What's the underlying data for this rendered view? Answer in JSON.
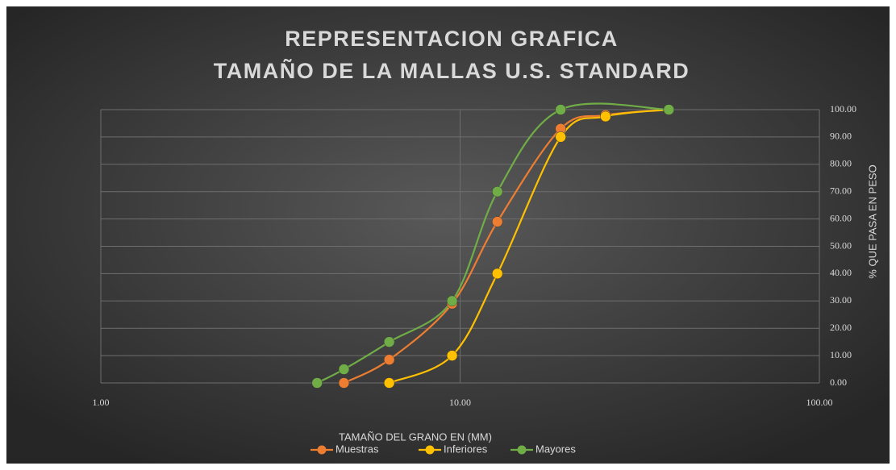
{
  "chart_data": {
    "type": "line",
    "title": "REPRESENTACION GRAFICA",
    "subtitle": "TAMAÑO DE LA MALLAS U.S. STANDARD",
    "xlabel": "TAMAÑO DEL GRANO EN (MM)",
    "ylabel": "% QUE PASA EN PESO",
    "xscale": "log",
    "xlim": [
      1,
      100
    ],
    "xticks": [
      {
        "value": 1,
        "label": "1.00"
      },
      {
        "value": 10,
        "label": "10.00"
      },
      {
        "value": 100,
        "label": "100.00"
      }
    ],
    "ylim": [
      0,
      100
    ],
    "yticks": [
      {
        "value": 0,
        "label": "0.00"
      },
      {
        "value": 10,
        "label": "10.00"
      },
      {
        "value": 20,
        "label": "20.00"
      },
      {
        "value": 30,
        "label": "30.00"
      },
      {
        "value": 40,
        "label": "40.00"
      },
      {
        "value": 50,
        "label": "50.00"
      },
      {
        "value": 60,
        "label": "60.00"
      },
      {
        "value": 70,
        "label": "70.00"
      },
      {
        "value": 80,
        "label": "80.00"
      },
      {
        "value": 90,
        "label": "90.00"
      },
      {
        "value": 100,
        "label": "100.00"
      }
    ],
    "grid": true,
    "legend": "bottom",
    "series": [
      {
        "name": "Muestras",
        "color": "#ed7d31",
        "x": [
          4.75,
          6.35,
          9.5,
          12.7,
          19.05,
          25.4,
          38.1
        ],
        "values": [
          0,
          8.5,
          29,
          59,
          93,
          98,
          100
        ]
      },
      {
        "name": "Inferiores",
        "color": "#ffc000",
        "x": [
          6.35,
          9.5,
          12.7,
          19.05,
          25.4,
          38.1
        ],
        "values": [
          0,
          10,
          40,
          90,
          97.5,
          100
        ]
      },
      {
        "name": "Mayores",
        "color": "#70ad47",
        "x": [
          4.0,
          4.75,
          6.35,
          9.5,
          12.7,
          19.05,
          38.1
        ],
        "values": [
          0,
          5,
          15,
          30,
          70,
          100,
          100
        ]
      }
    ]
  }
}
